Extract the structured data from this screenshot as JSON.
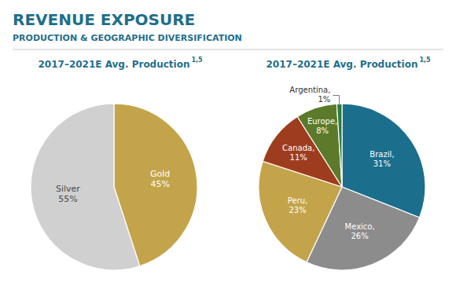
{
  "title": "REVENUE EXPOSURE",
  "subtitle": "PRODUCTION & GEOGRAPHIC DIVERSIFICATION",
  "chart_data": [
    {
      "type": "pie",
      "title": "2017–2021E Avg. Production",
      "annotations": [
        "1,5"
      ],
      "categories": [
        "Gold",
        "Silver"
      ],
      "values": [
        45,
        55
      ],
      "value_labels": [
        "45%",
        "55%"
      ],
      "colors": [
        "#C4A44A",
        "#D0D0D0"
      ],
      "data_labels": true
    },
    {
      "type": "pie",
      "title": "2017–2021E Avg. Production",
      "annotations": [
        "1,5"
      ],
      "categories": [
        "Brazil,",
        "Mexico,",
        "Peru,",
        "Canada,",
        "Europe,",
        "Argentina,"
      ],
      "values": [
        31,
        26,
        23,
        11,
        8,
        1
      ],
      "value_labels": [
        "31%",
        "26%",
        "23%",
        "11%",
        "8%",
        "1%"
      ],
      "colors": [
        "#1B6E8C",
        "#8C8C8C",
        "#C4A44A",
        "#9E3D1E",
        "#5C7A2A",
        "#2B7A3E"
      ],
      "data_labels": true
    }
  ]
}
